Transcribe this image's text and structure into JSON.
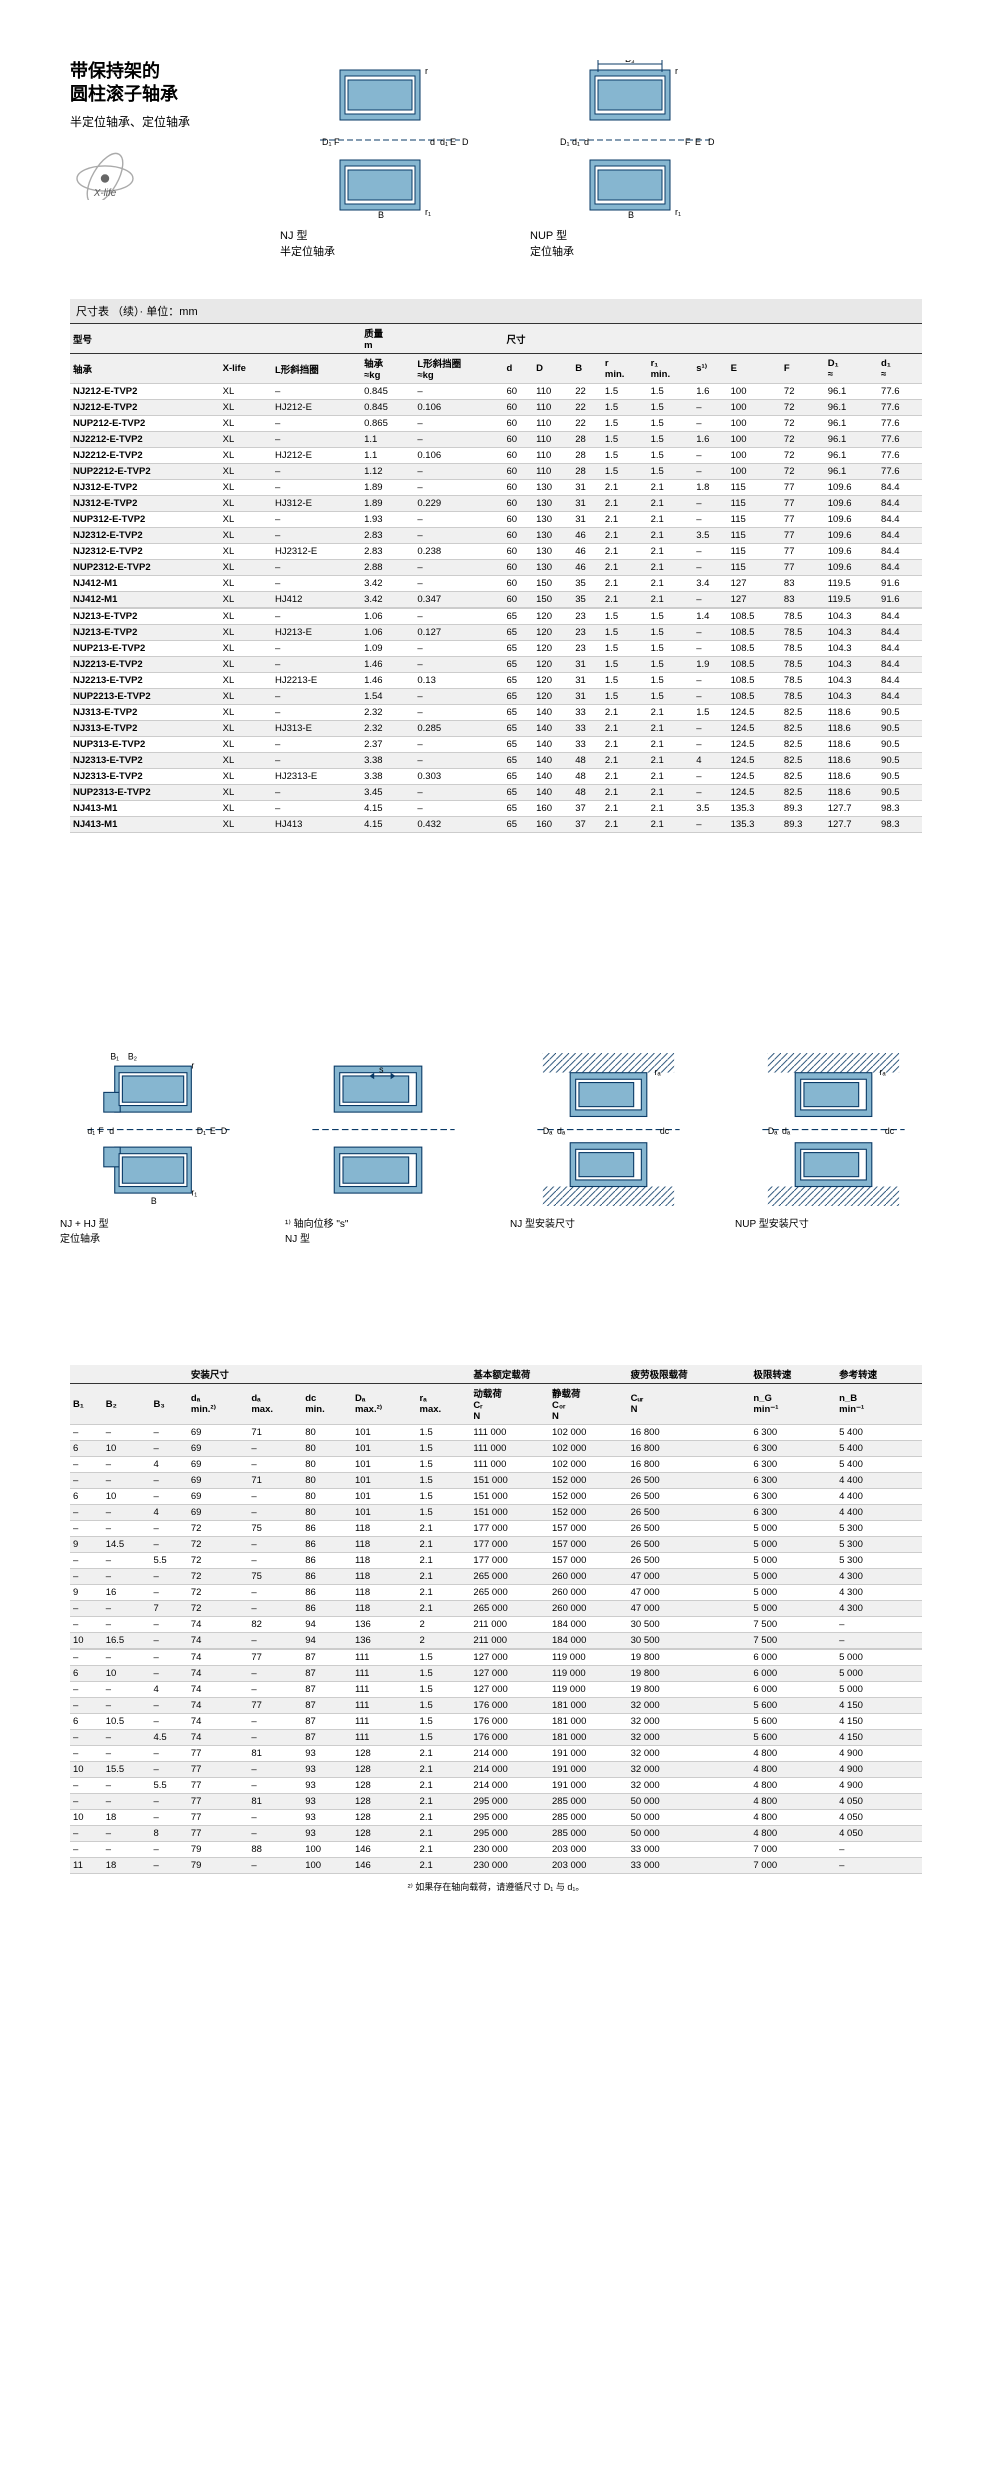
{
  "header": {
    "title_line1": "带保持架的",
    "title_line2": "圆柱滚子轴承",
    "subtitle": "半定位轴承、定位轴承",
    "diag1_caption1": "NJ 型",
    "diag1_caption2": "半定位轴承",
    "diag2_caption1": "NUP 型",
    "diag2_caption2": "定位轴承"
  },
  "table1": {
    "caption": "尺寸表 （续）· 单位：mm",
    "group_headers": [
      "型号",
      "质量\nm",
      "尺寸"
    ],
    "col_headers": [
      "轴承",
      "X-life",
      "L形斜挡圈",
      "轴承\n≈kg",
      "L形斜挡圈\n≈kg",
      "d",
      "D",
      "B",
      "r\nmin.",
      "r₁\nmin.",
      "s¹⁾",
      "E",
      "F",
      "D₁\n≈",
      "d₁\n≈"
    ],
    "rows": [
      [
        "NJ212-E-TVP2",
        "XL",
        "–",
        "0.845",
        "–",
        "60",
        "110",
        "22",
        "1.5",
        "1.5",
        "1.6",
        "100",
        "72",
        "96.1",
        "77.6"
      ],
      [
        "NJ212-E-TVP2",
        "XL",
        "HJ212-E",
        "0.845",
        "0.106",
        "60",
        "110",
        "22",
        "1.5",
        "1.5",
        "–",
        "100",
        "72",
        "96.1",
        "77.6"
      ],
      [
        "NUP212-E-TVP2",
        "XL",
        "–",
        "0.865",
        "–",
        "60",
        "110",
        "22",
        "1.5",
        "1.5",
        "–",
        "100",
        "72",
        "96.1",
        "77.6"
      ],
      [
        "NJ2212-E-TVP2",
        "XL",
        "–",
        "1.1",
        "–",
        "60",
        "110",
        "28",
        "1.5",
        "1.5",
        "1.6",
        "100",
        "72",
        "96.1",
        "77.6"
      ],
      [
        "NJ2212-E-TVP2",
        "XL",
        "HJ212-E",
        "1.1",
        "0.106",
        "60",
        "110",
        "28",
        "1.5",
        "1.5",
        "–",
        "100",
        "72",
        "96.1",
        "77.6"
      ],
      [
        "NUP2212-E-TVP2",
        "XL",
        "–",
        "1.12",
        "–",
        "60",
        "110",
        "28",
        "1.5",
        "1.5",
        "–",
        "100",
        "72",
        "96.1",
        "77.6"
      ],
      [
        "NJ312-E-TVP2",
        "XL",
        "–",
        "1.89",
        "–",
        "60",
        "130",
        "31",
        "2.1",
        "2.1",
        "1.8",
        "115",
        "77",
        "109.6",
        "84.4"
      ],
      [
        "NJ312-E-TVP2",
        "XL",
        "HJ312-E",
        "1.89",
        "0.229",
        "60",
        "130",
        "31",
        "2.1",
        "2.1",
        "–",
        "115",
        "77",
        "109.6",
        "84.4"
      ],
      [
        "NUP312-E-TVP2",
        "XL",
        "–",
        "1.93",
        "–",
        "60",
        "130",
        "31",
        "2.1",
        "2.1",
        "–",
        "115",
        "77",
        "109.6",
        "84.4"
      ],
      [
        "NJ2312-E-TVP2",
        "XL",
        "–",
        "2.83",
        "–",
        "60",
        "130",
        "46",
        "2.1",
        "2.1",
        "3.5",
        "115",
        "77",
        "109.6",
        "84.4"
      ],
      [
        "NJ2312-E-TVP2",
        "XL",
        "HJ2312-E",
        "2.83",
        "0.238",
        "60",
        "130",
        "46",
        "2.1",
        "2.1",
        "–",
        "115",
        "77",
        "109.6",
        "84.4"
      ],
      [
        "NUP2312-E-TVP2",
        "XL",
        "–",
        "2.88",
        "–",
        "60",
        "130",
        "46",
        "2.1",
        "2.1",
        "–",
        "115",
        "77",
        "109.6",
        "84.4"
      ],
      [
        "NJ412-M1",
        "XL",
        "–",
        "3.42",
        "–",
        "60",
        "150",
        "35",
        "2.1",
        "2.1",
        "3.4",
        "127",
        "83",
        "119.5",
        "91.6"
      ],
      [
        "NJ412-M1",
        "XL",
        "HJ412",
        "3.42",
        "0.347",
        "60",
        "150",
        "35",
        "2.1",
        "2.1",
        "–",
        "127",
        "83",
        "119.5",
        "91.6"
      ],
      [
        "NJ213-E-TVP2",
        "XL",
        "–",
        "1.06",
        "–",
        "65",
        "120",
        "23",
        "1.5",
        "1.5",
        "1.4",
        "108.5",
        "78.5",
        "104.3",
        "84.4"
      ],
      [
        "NJ213-E-TVP2",
        "XL",
        "HJ213-E",
        "1.06",
        "0.127",
        "65",
        "120",
        "23",
        "1.5",
        "1.5",
        "–",
        "108.5",
        "78.5",
        "104.3",
        "84.4"
      ],
      [
        "NUP213-E-TVP2",
        "XL",
        "–",
        "1.09",
        "–",
        "65",
        "120",
        "23",
        "1.5",
        "1.5",
        "–",
        "108.5",
        "78.5",
        "104.3",
        "84.4"
      ],
      [
        "NJ2213-E-TVP2",
        "XL",
        "–",
        "1.46",
        "–",
        "65",
        "120",
        "31",
        "1.5",
        "1.5",
        "1.9",
        "108.5",
        "78.5",
        "104.3",
        "84.4"
      ],
      [
        "NJ2213-E-TVP2",
        "XL",
        "HJ2213-E",
        "1.46",
        "0.13",
        "65",
        "120",
        "31",
        "1.5",
        "1.5",
        "–",
        "108.5",
        "78.5",
        "104.3",
        "84.4"
      ],
      [
        "NUP2213-E-TVP2",
        "XL",
        "–",
        "1.54",
        "–",
        "65",
        "120",
        "31",
        "1.5",
        "1.5",
        "–",
        "108.5",
        "78.5",
        "104.3",
        "84.4"
      ],
      [
        "NJ313-E-TVP2",
        "XL",
        "–",
        "2.32",
        "–",
        "65",
        "140",
        "33",
        "2.1",
        "2.1",
        "1.5",
        "124.5",
        "82.5",
        "118.6",
        "90.5"
      ],
      [
        "NJ313-E-TVP2",
        "XL",
        "HJ313-E",
        "2.32",
        "0.285",
        "65",
        "140",
        "33",
        "2.1",
        "2.1",
        "–",
        "124.5",
        "82.5",
        "118.6",
        "90.5"
      ],
      [
        "NUP313-E-TVP2",
        "XL",
        "–",
        "2.37",
        "–",
        "65",
        "140",
        "33",
        "2.1",
        "2.1",
        "–",
        "124.5",
        "82.5",
        "118.6",
        "90.5"
      ],
      [
        "NJ2313-E-TVP2",
        "XL",
        "–",
        "3.38",
        "–",
        "65",
        "140",
        "48",
        "2.1",
        "2.1",
        "4",
        "124.5",
        "82.5",
        "118.6",
        "90.5"
      ],
      [
        "NJ2313-E-TVP2",
        "XL",
        "HJ2313-E",
        "3.38",
        "0.303",
        "65",
        "140",
        "48",
        "2.1",
        "2.1",
        "–",
        "124.5",
        "82.5",
        "118.6",
        "90.5"
      ],
      [
        "NUP2313-E-TVP2",
        "XL",
        "–",
        "3.45",
        "–",
        "65",
        "140",
        "48",
        "2.1",
        "2.1",
        "–",
        "124.5",
        "82.5",
        "118.6",
        "90.5"
      ],
      [
        "NJ413-M1",
        "XL",
        "–",
        "4.15",
        "–",
        "65",
        "160",
        "37",
        "2.1",
        "2.1",
        "3.5",
        "135.3",
        "89.3",
        "127.7",
        "98.3"
      ],
      [
        "NJ413-M1",
        "XL",
        "HJ413",
        "4.15",
        "0.432",
        "65",
        "160",
        "37",
        "2.1",
        "2.1",
        "–",
        "135.3",
        "89.3",
        "127.7",
        "98.3"
      ]
    ]
  },
  "lower_diagrams": {
    "d1_cap1": "NJ + HJ 型",
    "d1_cap2": "定位轴承",
    "d2_cap": "¹⁾ 轴向位移 \"s\"\nNJ 型",
    "d3_cap": "NJ 型安装尺寸",
    "d4_cap": "NUP 型安装尺寸"
  },
  "table2": {
    "group_headers": [
      "",
      "安装尺寸",
      "基本额定载荷",
      "疲劳极限载荷",
      "极限转速",
      "参考转速"
    ],
    "col_headers": [
      "B₁",
      "B₂",
      "B₃",
      "dₐ\nmin.²⁾",
      "dₐ\nmax.",
      "dc\nmin.",
      "Dₐ\nmax.²⁾",
      "rₐ\nmax.",
      "动载荷\nCᵣ\nN",
      "静载荷\nC₀ᵣ\nN",
      "Cᵤᵣ\nN",
      "n_G\nmin⁻¹",
      "n_B\nmin⁻¹"
    ],
    "rows": [
      [
        "–",
        "–",
        "–",
        "69",
        "71",
        "80",
        "101",
        "1.5",
        "111 000",
        "102 000",
        "16 800",
        "6 300",
        "5 400"
      ],
      [
        "6",
        "10",
        "–",
        "69",
        "–",
        "80",
        "101",
        "1.5",
        "111 000",
        "102 000",
        "16 800",
        "6 300",
        "5 400"
      ],
      [
        "–",
        "–",
        "4",
        "69",
        "–",
        "80",
        "101",
        "1.5",
        "111 000",
        "102 000",
        "16 800",
        "6 300",
        "5 400"
      ],
      [
        "–",
        "–",
        "–",
        "69",
        "71",
        "80",
        "101",
        "1.5",
        "151 000",
        "152 000",
        "26 500",
        "6 300",
        "4 400"
      ],
      [
        "6",
        "10",
        "–",
        "69",
        "–",
        "80",
        "101",
        "1.5",
        "151 000",
        "152 000",
        "26 500",
        "6 300",
        "4 400"
      ],
      [
        "–",
        "–",
        "4",
        "69",
        "–",
        "80",
        "101",
        "1.5",
        "151 000",
        "152 000",
        "26 500",
        "6 300",
        "4 400"
      ],
      [
        "–",
        "–",
        "–",
        "72",
        "75",
        "86",
        "118",
        "2.1",
        "177 000",
        "157 000",
        "26 500",
        "5 000",
        "5 300"
      ],
      [
        "9",
        "14.5",
        "–",
        "72",
        "–",
        "86",
        "118",
        "2.1",
        "177 000",
        "157 000",
        "26 500",
        "5 000",
        "5 300"
      ],
      [
        "–",
        "–",
        "5.5",
        "72",
        "–",
        "86",
        "118",
        "2.1",
        "177 000",
        "157 000",
        "26 500",
        "5 000",
        "5 300"
      ],
      [
        "–",
        "–",
        "–",
        "72",
        "75",
        "86",
        "118",
        "2.1",
        "265 000",
        "260 000",
        "47 000",
        "5 000",
        "4 300"
      ],
      [
        "9",
        "16",
        "–",
        "72",
        "–",
        "86",
        "118",
        "2.1",
        "265 000",
        "260 000",
        "47 000",
        "5 000",
        "4 300"
      ],
      [
        "–",
        "–",
        "7",
        "72",
        "–",
        "86",
        "118",
        "2.1",
        "265 000",
        "260 000",
        "47 000",
        "5 000",
        "4 300"
      ],
      [
        "–",
        "–",
        "–",
        "74",
        "82",
        "94",
        "136",
        "2",
        "211 000",
        "184 000",
        "30 500",
        "7 500",
        "–"
      ],
      [
        "10",
        "16.5",
        "–",
        "74",
        "–",
        "94",
        "136",
        "2",
        "211 000",
        "184 000",
        "30 500",
        "7 500",
        "–"
      ],
      [
        "–",
        "–",
        "–",
        "74",
        "77",
        "87",
        "111",
        "1.5",
        "127 000",
        "119 000",
        "19 800",
        "6 000",
        "5 000"
      ],
      [
        "6",
        "10",
        "–",
        "74",
        "–",
        "87",
        "111",
        "1.5",
        "127 000",
        "119 000",
        "19 800",
        "6 000",
        "5 000"
      ],
      [
        "–",
        "–",
        "4",
        "74",
        "–",
        "87",
        "111",
        "1.5",
        "127 000",
        "119 000",
        "19 800",
        "6 000",
        "5 000"
      ],
      [
        "–",
        "–",
        "–",
        "74",
        "77",
        "87",
        "111",
        "1.5",
        "176 000",
        "181 000",
        "32 000",
        "5 600",
        "4 150"
      ],
      [
        "6",
        "10.5",
        "–",
        "74",
        "–",
        "87",
        "111",
        "1.5",
        "176 000",
        "181 000",
        "32 000",
        "5 600",
        "4 150"
      ],
      [
        "–",
        "–",
        "4.5",
        "74",
        "–",
        "87",
        "111",
        "1.5",
        "176 000",
        "181 000",
        "32 000",
        "5 600",
        "4 150"
      ],
      [
        "–",
        "–",
        "–",
        "77",
        "81",
        "93",
        "128",
        "2.1",
        "214 000",
        "191 000",
        "32 000",
        "4 800",
        "4 900"
      ],
      [
        "10",
        "15.5",
        "–",
        "77",
        "–",
        "93",
        "128",
        "2.1",
        "214 000",
        "191 000",
        "32 000",
        "4 800",
        "4 900"
      ],
      [
        "–",
        "–",
        "5.5",
        "77",
        "–",
        "93",
        "128",
        "2.1",
        "214 000",
        "191 000",
        "32 000",
        "4 800",
        "4 900"
      ],
      [
        "–",
        "–",
        "–",
        "77",
        "81",
        "93",
        "128",
        "2.1",
        "295 000",
        "285 000",
        "50 000",
        "4 800",
        "4 050"
      ],
      [
        "10",
        "18",
        "–",
        "77",
        "–",
        "93",
        "128",
        "2.1",
        "295 000",
        "285 000",
        "50 000",
        "4 800",
        "4 050"
      ],
      [
        "–",
        "–",
        "8",
        "77",
        "–",
        "93",
        "128",
        "2.1",
        "295 000",
        "285 000",
        "50 000",
        "4 800",
        "4 050"
      ],
      [
        "–",
        "–",
        "–",
        "79",
        "88",
        "100",
        "146",
        "2.1",
        "230 000",
        "203 000",
        "33 000",
        "7 000",
        "–"
      ],
      [
        "11",
        "18",
        "–",
        "79",
        "–",
        "100",
        "146",
        "2.1",
        "230 000",
        "203 000",
        "33 000",
        "7 000",
        "–"
      ]
    ],
    "footnote": "²⁾ 如果存在轴向载荷，请遵循尺寸 D₁ 与 d₁。"
  }
}
